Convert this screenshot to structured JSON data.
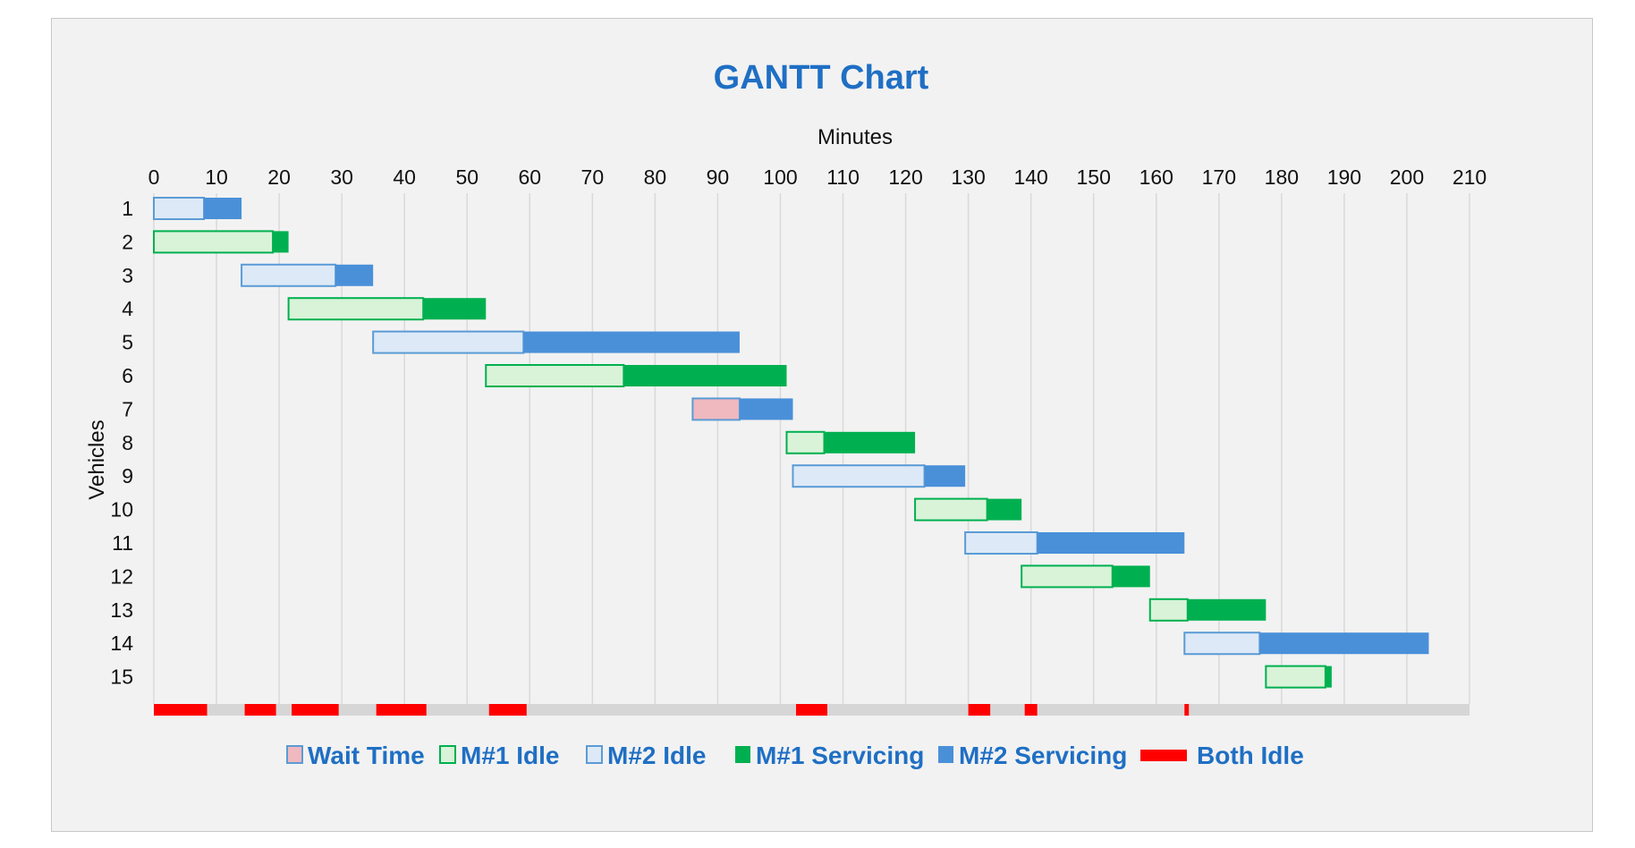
{
  "chart_data": {
    "type": "gantt",
    "title": "GANTT Chart",
    "xlabel": "Minutes",
    "ylabel": "Vehicles",
    "xlim": [
      0,
      210
    ],
    "x_ticks": [
      0,
      10,
      20,
      30,
      40,
      50,
      60,
      70,
      80,
      90,
      100,
      110,
      120,
      130,
      140,
      150,
      160,
      170,
      180,
      190,
      200,
      210
    ],
    "categories": [
      "1",
      "2",
      "3",
      "4",
      "5",
      "6",
      "7",
      "8",
      "9",
      "10",
      "11",
      "12",
      "13",
      "14",
      "15"
    ],
    "grid": "vertical",
    "legend_position": "bottom",
    "colors": {
      "wait": "#f0b8bf",
      "m1_idle_fill": "#d8f3d8",
      "m1_idle_stroke": "#00b050",
      "m2_idle_fill": "#dde9f7",
      "m2_idle_stroke": "#5b9bd5",
      "m1_serv": "#00b050",
      "m2_serv": "#4a90d9",
      "both_idle": "#ff0000",
      "track": "#d6d6d6",
      "grid": "#d9d9d9"
    },
    "legend": [
      {
        "key": "wait",
        "label": "Wait Time"
      },
      {
        "key": "m1_idle",
        "label": "M#1 Idle"
      },
      {
        "key": "m2_idle",
        "label": "M#2 Idle"
      },
      {
        "key": "m1_serv",
        "label": "M#1 Servicing"
      },
      {
        "key": "m2_serv",
        "label": "M#2 Servicing"
      },
      {
        "key": "both_idle",
        "label": "Both Idle"
      }
    ],
    "tasks": [
      {
        "vehicle": "1",
        "segments": [
          {
            "type": "m2_idle",
            "start": 0,
            "end": 8
          },
          {
            "type": "m2_serv",
            "start": 8,
            "end": 14
          }
        ]
      },
      {
        "vehicle": "2",
        "segments": [
          {
            "type": "m1_idle",
            "start": 0,
            "end": 19
          },
          {
            "type": "m1_serv",
            "start": 19,
            "end": 21.5
          }
        ]
      },
      {
        "vehicle": "3",
        "segments": [
          {
            "type": "m2_idle",
            "start": 14,
            "end": 29
          },
          {
            "type": "m2_serv",
            "start": 29,
            "end": 35
          }
        ]
      },
      {
        "vehicle": "4",
        "segments": [
          {
            "type": "m1_idle",
            "start": 21.5,
            "end": 43
          },
          {
            "type": "m1_serv",
            "start": 43,
            "end": 53
          }
        ]
      },
      {
        "vehicle": "5",
        "segments": [
          {
            "type": "m2_idle",
            "start": 35,
            "end": 59
          },
          {
            "type": "m2_serv",
            "start": 59,
            "end": 93.5
          }
        ]
      },
      {
        "vehicle": "6",
        "segments": [
          {
            "type": "m1_idle",
            "start": 53,
            "end": 75
          },
          {
            "type": "m1_serv",
            "start": 75,
            "end": 101
          }
        ]
      },
      {
        "vehicle": "7",
        "segments": [
          {
            "type": "wait",
            "start": 86,
            "end": 93.5
          },
          {
            "type": "m2_serv",
            "start": 93.5,
            "end": 102
          }
        ]
      },
      {
        "vehicle": "8",
        "segments": [
          {
            "type": "m1_idle",
            "start": 101,
            "end": 107
          },
          {
            "type": "m1_serv",
            "start": 107,
            "end": 121.5
          }
        ]
      },
      {
        "vehicle": "9",
        "segments": [
          {
            "type": "m2_idle",
            "start": 102,
            "end": 123
          },
          {
            "type": "m2_serv",
            "start": 123,
            "end": 129.5
          }
        ]
      },
      {
        "vehicle": "10",
        "segments": [
          {
            "type": "m1_idle",
            "start": 121.5,
            "end": 133
          },
          {
            "type": "m1_serv",
            "start": 133,
            "end": 138.5
          }
        ]
      },
      {
        "vehicle": "11",
        "segments": [
          {
            "type": "m2_idle",
            "start": 129.5,
            "end": 141
          },
          {
            "type": "m2_serv",
            "start": 141,
            "end": 164.5
          }
        ]
      },
      {
        "vehicle": "12",
        "segments": [
          {
            "type": "m1_idle",
            "start": 138.5,
            "end": 153
          },
          {
            "type": "m1_serv",
            "start": 153,
            "end": 159
          }
        ]
      },
      {
        "vehicle": "13",
        "segments": [
          {
            "type": "m1_idle",
            "start": 159,
            "end": 165
          },
          {
            "type": "m1_serv",
            "start": 165,
            "end": 177.5
          }
        ]
      },
      {
        "vehicle": "14",
        "segments": [
          {
            "type": "m2_idle",
            "start": 164.5,
            "end": 176.5
          },
          {
            "type": "m2_serv",
            "start": 176.5,
            "end": 203.5
          }
        ]
      },
      {
        "vehicle": "15",
        "segments": [
          {
            "type": "m1_idle",
            "start": 177.5,
            "end": 187
          },
          {
            "type": "m1_serv",
            "start": 187,
            "end": 188
          }
        ]
      }
    ],
    "both_idle": [
      [
        0,
        8.5
      ],
      [
        14.5,
        19.5
      ],
      [
        22,
        29.5
      ],
      [
        35.5,
        43.5
      ],
      [
        53.5,
        59.5
      ],
      [
        102.5,
        107.5
      ],
      [
        130,
        133.5
      ],
      [
        139,
        141
      ],
      [
        164.5,
        165.2
      ]
    ]
  }
}
